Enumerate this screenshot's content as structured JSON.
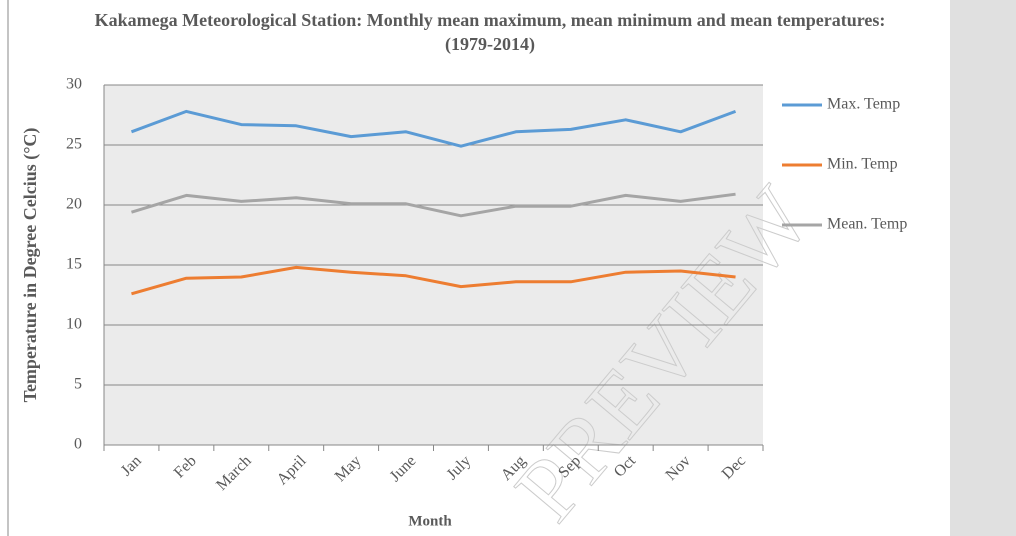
{
  "chart_data": {
    "type": "line",
    "title": "Kakamega Meteorological Station: Monthly mean maximum, mean minimum and mean temperatures: (1979-2014)",
    "x_label": "Month",
    "y_label": "Temperature in Degree Celcius (°C)",
    "categories": [
      "Jan",
      "Feb",
      "March",
      "April",
      "May",
      "June",
      "July",
      "Aug",
      "Sep",
      "Oct",
      "Nov",
      "Dec"
    ],
    "series": [
      {
        "name": "Max. Temp",
        "color": "#5b9bd5",
        "values": [
          26.1,
          27.8,
          26.7,
          26.6,
          25.7,
          26.1,
          24.9,
          26.1,
          26.3,
          27.1,
          26.1,
          27.8
        ]
      },
      {
        "name": "Min. Temp",
        "color": "#ed7d31",
        "values": [
          12.6,
          13.9,
          14.0,
          14.8,
          14.4,
          14.1,
          13.2,
          13.6,
          13.6,
          14.4,
          14.5,
          14.0
        ]
      },
      {
        "name": "Mean. Temp",
        "color": "#a5a5a5",
        "values": [
          19.4,
          20.8,
          20.3,
          20.6,
          20.1,
          20.1,
          19.1,
          19.9,
          19.9,
          20.8,
          20.3,
          20.9
        ]
      }
    ],
    "ylim": [
      0,
      30
    ],
    "yticks": [
      0,
      5,
      10,
      15,
      20,
      25,
      30
    ],
    "grid": true,
    "legend": "right",
    "watermark": "PREVIEW"
  }
}
